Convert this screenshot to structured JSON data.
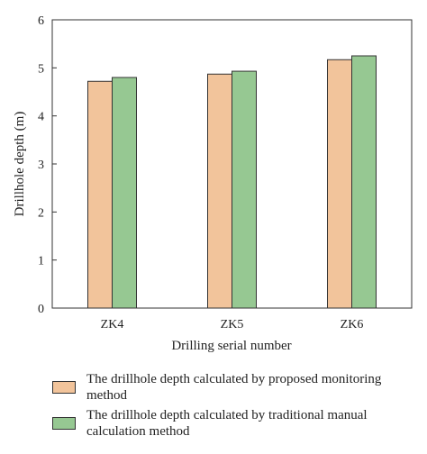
{
  "chart_data": {
    "type": "bar",
    "categories": [
      "ZK4",
      "ZK5",
      "ZK6"
    ],
    "series": [
      {
        "name": "The drillhole depth calculated by proposed monitoring method",
        "values": [
          4.72,
          4.87,
          5.17
        ],
        "color": "#f2c49b"
      },
      {
        "name": "The drillhole depth calculated by traditional manual calculation method",
        "values": [
          4.8,
          4.93,
          5.25
        ],
        "color": "#96c892"
      }
    ],
    "title": "",
    "xlabel": "Drilling serial number",
    "ylabel": "Drillhole depth (m)",
    "ylim": [
      0,
      6
    ],
    "yticks": [
      0,
      1,
      2,
      3,
      4,
      5,
      6
    ],
    "grid": false,
    "legend_position": "bottom"
  }
}
